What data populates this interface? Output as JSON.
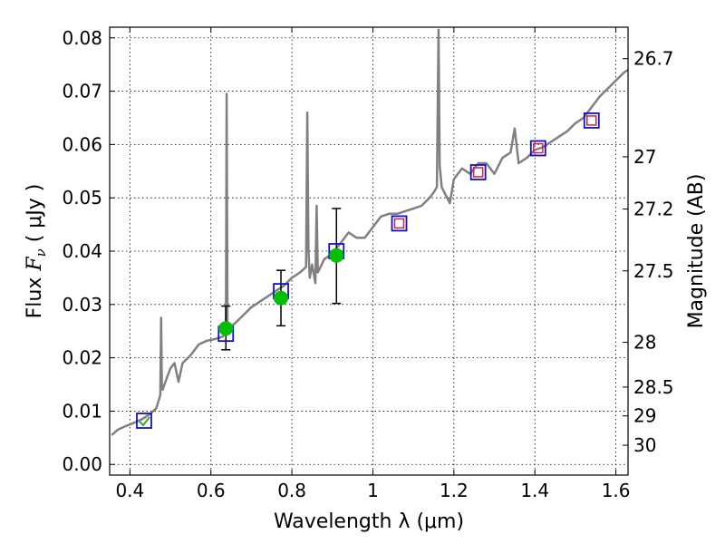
{
  "chart_data": {
    "type": "line",
    "xlabel": "Wavelength  λ (μm)",
    "ylabel_parts": [
      "Flux ",
      "F",
      "ν",
      "  ( μJy )"
    ],
    "ylabel2": "Magnitude (AB)",
    "xlim": [
      0.35,
      1.63
    ],
    "ylim": [
      -0.002,
      0.082
    ],
    "grid": true,
    "x_ticks": [
      0.4,
      0.6,
      0.8,
      1.0,
      1.2,
      1.4,
      1.6
    ],
    "x_tick_labels": [
      "0.4",
      "0.6",
      "0.8",
      "1",
      "1.2",
      "1.4",
      "1.6"
    ],
    "y_ticks": [
      0.0,
      0.01,
      0.02,
      0.03,
      0.04,
      0.05,
      0.06,
      0.07,
      0.08
    ],
    "y_tick_labels": [
      "0.00",
      "0.01",
      "0.02",
      "0.03",
      "0.04",
      "0.05",
      "0.06",
      "0.07",
      "0.08"
    ],
    "mag_ticks": [
      {
        "label": "26.7",
        "flux": 0.0761
      },
      {
        "label": "27",
        "flux": 0.0577
      },
      {
        "label": "27.2",
        "flux": 0.0479
      },
      {
        "label": "27.5",
        "flux": 0.0363
      },
      {
        "label": "28",
        "flux": 0.0229
      },
      {
        "label": "28.5",
        "flux": 0.0145
      },
      {
        "label": "29",
        "flux": 0.0091
      },
      {
        "label": "30",
        "flux": 0.0036
      }
    ],
    "series": [
      {
        "name": "model spectrum",
        "color": "#808080",
        "x": [
          0.355,
          0.37,
          0.39,
          0.41,
          0.43,
          0.45,
          0.465,
          0.475,
          0.477,
          0.479,
          0.481,
          0.49,
          0.5,
          0.51,
          0.52,
          0.53,
          0.55,
          0.57,
          0.59,
          0.61,
          0.63,
          0.637,
          0.639,
          0.641,
          0.643,
          0.66,
          0.68,
          0.7,
          0.72,
          0.74,
          0.76,
          0.78,
          0.8,
          0.82,
          0.835,
          0.838,
          0.841,
          0.844,
          0.85,
          0.858,
          0.861,
          0.864,
          0.88,
          0.9,
          0.92,
          0.94,
          0.96,
          0.98,
          1.0,
          1.02,
          1.04,
          1.06,
          1.08,
          1.1,
          1.12,
          1.14,
          1.15,
          1.158,
          1.162,
          1.165,
          1.17,
          1.18,
          1.19,
          1.2,
          1.22,
          1.24,
          1.26,
          1.28,
          1.3,
          1.32,
          1.34,
          1.35,
          1.36,
          1.38,
          1.4,
          1.42,
          1.44,
          1.46,
          1.48,
          1.5,
          1.52,
          1.54,
          1.56,
          1.58,
          1.6,
          1.62,
          1.63
        ],
        "values": [
          0.0055,
          0.0065,
          0.0072,
          0.0078,
          0.0085,
          0.0095,
          0.0105,
          0.013,
          0.0275,
          0.015,
          0.014,
          0.016,
          0.018,
          0.019,
          0.0155,
          0.019,
          0.0205,
          0.0225,
          0.0232,
          0.0235,
          0.024,
          0.025,
          0.0695,
          0.026,
          0.0255,
          0.0265,
          0.028,
          0.0295,
          0.0305,
          0.0315,
          0.0325,
          0.0335,
          0.035,
          0.036,
          0.037,
          0.066,
          0.04,
          0.035,
          0.0375,
          0.034,
          0.0485,
          0.036,
          0.0385,
          0.0395,
          0.0415,
          0.0435,
          0.0425,
          0.0425,
          0.0445,
          0.0465,
          0.047,
          0.047,
          0.0475,
          0.048,
          0.0485,
          0.05,
          0.051,
          0.052,
          0.0815,
          0.056,
          0.052,
          0.0505,
          0.049,
          0.0535,
          0.0555,
          0.0545,
          0.0565,
          0.0565,
          0.0545,
          0.0575,
          0.0585,
          0.063,
          0.0565,
          0.0575,
          0.059,
          0.0595,
          0.0605,
          0.0615,
          0.0625,
          0.064,
          0.065,
          0.067,
          0.069,
          0.0705,
          0.072,
          0.0735,
          0.074
        ]
      },
      {
        "name": "observed photometry",
        "color": "#00c000",
        "x": [
          0.637,
          0.773,
          0.91
        ],
        "values": [
          0.0255,
          0.0312,
          0.0392
        ],
        "err_low": [
          0.004,
          0.0052,
          0.009
        ],
        "err_high": [
          0.0042,
          0.0052,
          0.0088
        ]
      },
      {
        "name": "model photometry (blue squares)",
        "color": "#1010cc",
        "x": [
          0.435,
          0.637,
          0.773,
          0.91,
          1.065,
          1.26,
          1.408,
          1.54
        ],
        "values": [
          0.0082,
          0.0245,
          0.0325,
          0.04,
          0.0452,
          0.0548,
          0.0593,
          0.0645
        ]
      },
      {
        "name": "model photometry (red squares)",
        "color": "#cc2244",
        "x": [
          1.065,
          1.26,
          1.408,
          1.54
        ],
        "values": [
          0.0452,
          0.0548,
          0.0593,
          0.0645
        ]
      },
      {
        "name": "green check marker",
        "color": "#44aa44",
        "x": [
          0.435
        ],
        "values": [
          0.0082
        ]
      }
    ],
    "colors": {
      "spectrum": "#808080",
      "observed": "#00c000",
      "model_blue": "#1010cc",
      "model_red": "#cc2244",
      "error_bar": "#000000"
    }
  }
}
